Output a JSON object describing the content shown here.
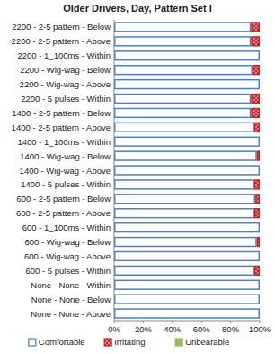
{
  "chart_data": {
    "type": "bar",
    "orientation": "horizontal",
    "stacked": true,
    "title": "Older Drivers, Day, Pattern Set I",
    "categories": [
      "2200 - 2-5 pattern - Below",
      "2200 - 2-5 pattern - Above",
      "2200 - 1_100ms - Within",
      "2200 - Wig-wag - Below",
      "2200 - Wig-wag - Above",
      "2200 - 5 pulses - Within",
      "1400 - 2-5 pattern - Below",
      "1400 - 2-5 pattern - Above",
      "1400 - 1_100ms - Within",
      "1400 - Wig-wag - Below",
      "1400 - Wig-wag - Above",
      "1400 - 5 pulses - Within",
      "600 - 2-5 pattern - Below",
      "600 - 2-5 pattern - Above",
      "600 - 1_100ms - Within",
      "600 - Wig-wag - Below",
      "600 - Wig-wag - Above",
      "600 - 5 pulses - Within",
      "None - None - Within",
      "None - None - Below",
      "None - None - Above"
    ],
    "series": [
      {
        "name": "Comfortable",
        "color": "#4f81bd",
        "values": [
          94,
          94,
          100,
          95,
          100,
          94,
          94,
          96,
          100,
          98,
          100,
          96,
          97,
          96,
          100,
          98,
          100,
          96,
          100,
          100,
          100
        ]
      },
      {
        "name": "Irritating",
        "color": "#c0282d",
        "values": [
          6,
          6,
          0,
          5,
          0,
          6,
          6,
          4,
          0,
          2,
          0,
          4,
          3,
          4,
          0,
          2,
          0,
          4,
          0,
          0,
          0
        ]
      },
      {
        "name": "Unbearable",
        "color": "#9bbb59",
        "values": [
          0,
          0,
          0,
          0,
          0,
          0,
          0,
          0,
          0,
          0,
          0,
          0,
          0,
          0,
          0,
          0,
          0,
          0,
          0,
          0,
          0
        ]
      }
    ],
    "xlim": [
      0,
      100
    ],
    "xticks": [
      {
        "value": 0,
        "label": "0%"
      },
      {
        "value": 20,
        "label": "20%"
      },
      {
        "value": 40,
        "label": "40%"
      },
      {
        "value": 60,
        "label": "60%"
      },
      {
        "value": 80,
        "label": "80%"
      },
      {
        "value": 100,
        "label": "100%"
      }
    ],
    "grid": false,
    "legend": "bottom"
  }
}
